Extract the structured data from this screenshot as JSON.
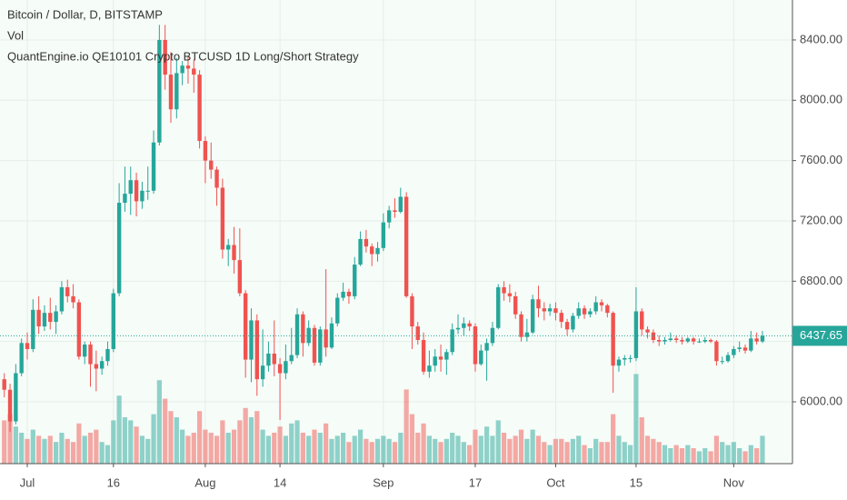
{
  "chart_data": {
    "type": "candlestick",
    "title": "Bitcoin / Dollar, D, BITSTAMP",
    "indicators": [
      "Vol",
      "QuantEngine.io QE10101 Crypto BTCUSD 1D Long/Short Strategy"
    ],
    "up_color": "#26a69a",
    "down_color": "#ef5350",
    "grid": true,
    "last_price": 6437.65,
    "ylim": [
      5590,
      8665
    ],
    "yticks": [
      {
        "value": 6000,
        "label": "6000.00"
      },
      {
        "value": 6400,
        "label": "6400.00"
      },
      {
        "value": 6800,
        "label": "6800.00"
      },
      {
        "value": 7200,
        "label": "7200.00"
      },
      {
        "value": 7600,
        "label": "7600.00"
      },
      {
        "value": 8000,
        "label": "8000.00"
      },
      {
        "value": 8400,
        "label": "8400.00"
      }
    ],
    "vlim": [
      0,
      150000
    ],
    "categories": [
      null,
      null,
      null,
      null,
      "Jul",
      null,
      null,
      null,
      null,
      null,
      null,
      null,
      null,
      null,
      null,
      null,
      null,
      null,
      null,
      "16",
      null,
      null,
      null,
      null,
      null,
      null,
      null,
      null,
      null,
      null,
      null,
      null,
      null,
      null,
      null,
      "Aug",
      null,
      null,
      null,
      null,
      null,
      null,
      null,
      null,
      null,
      null,
      null,
      null,
      "14",
      null,
      null,
      null,
      null,
      null,
      null,
      null,
      null,
      null,
      null,
      null,
      null,
      null,
      null,
      null,
      null,
      null,
      "Sep",
      null,
      null,
      null,
      null,
      null,
      null,
      null,
      null,
      null,
      null,
      null,
      null,
      null,
      null,
      null,
      "17",
      null,
      null,
      null,
      null,
      null,
      null,
      null,
      null,
      null,
      null,
      null,
      null,
      null,
      "Oct",
      null,
      null,
      null,
      null,
      null,
      null,
      null,
      null,
      null,
      null,
      null,
      null,
      null,
      "15",
      null,
      null,
      null,
      null,
      null,
      null,
      null,
      null,
      null,
      null,
      null,
      null,
      null,
      null,
      null,
      null,
      "Nov",
      null,
      null,
      null,
      null,
      null
    ],
    "ohlc": [
      [
        6150,
        6190,
        6030,
        6080
      ],
      [
        6080,
        6120,
        5800,
        5870
      ],
      [
        5870,
        6250,
        5850,
        6190
      ],
      [
        6190,
        6420,
        6170,
        6390
      ],
      [
        6390,
        6460,
        6280,
        6350
      ],
      [
        6350,
        6680,
        6330,
        6610
      ],
      [
        6610,
        6700,
        6450,
        6500
      ],
      [
        6500,
        6640,
        6470,
        6590
      ],
      [
        6590,
        6690,
        6480,
        6530
      ],
      [
        6530,
        6640,
        6450,
        6600
      ],
      [
        6600,
        6800,
        6580,
        6760
      ],
      [
        6760,
        6810,
        6660,
        6700
      ],
      [
        6700,
        6780,
        6620,
        6660
      ],
      [
        6660,
        6680,
        6280,
        6300
      ],
      [
        6300,
        6400,
        6250,
        6380
      ],
      [
        6380,
        6400,
        6100,
        6250
      ],
      [
        6250,
        6340,
        6070,
        6220
      ],
      [
        6220,
        6300,
        6180,
        6270
      ],
      [
        6270,
        6400,
        6240,
        6350
      ],
      [
        6350,
        6750,
        6330,
        6720
      ],
      [
        6720,
        7450,
        6700,
        7320
      ],
      [
        7320,
        7560,
        7260,
        7380
      ],
      [
        7380,
        7560,
        7240,
        7470
      ],
      [
        7470,
        7520,
        7230,
        7330
      ],
      [
        7330,
        7460,
        7280,
        7400
      ],
      [
        7400,
        7560,
        7340,
        7400
      ],
      [
        7400,
        7800,
        7380,
        7720
      ],
      [
        7720,
        8500,
        7700,
        8400
      ],
      [
        8400,
        8500,
        8070,
        8170
      ],
      [
        8170,
        8320,
        7850,
        7940
      ],
      [
        7940,
        8280,
        7880,
        8180
      ],
      [
        8180,
        8260,
        8100,
        8230
      ],
      [
        8230,
        8290,
        8110,
        8210
      ],
      [
        8210,
        8270,
        8050,
        8170
      ],
      [
        8170,
        8200,
        7680,
        7730
      ],
      [
        7730,
        7760,
        7450,
        7600
      ],
      [
        7600,
        7720,
        7480,
        7540
      ],
      [
        7540,
        7560,
        7300,
        7420
      ],
      [
        7420,
        7480,
        6950,
        7010
      ],
      [
        7010,
        7080,
        6900,
        7040
      ],
      [
        7040,
        7160,
        6850,
        6940
      ],
      [
        6940,
        7150,
        6700,
        6720
      ],
      [
        6720,
        6740,
        6160,
        6280
      ],
      [
        6280,
        6620,
        6130,
        6540
      ],
      [
        6540,
        6580,
        6040,
        6150
      ],
      [
        6150,
        6480,
        6100,
        6240
      ],
      [
        6240,
        6400,
        6200,
        6320
      ],
      [
        6320,
        6540,
        6170,
        6250
      ],
      [
        6250,
        6290,
        5880,
        6190
      ],
      [
        6190,
        6380,
        6150,
        6270
      ],
      [
        6270,
        6490,
        6250,
        6310
      ],
      [
        6310,
        6620,
        6290,
        6580
      ],
      [
        6580,
        6600,
        6300,
        6390
      ],
      [
        6390,
        6540,
        6370,
        6490
      ],
      [
        6490,
        6510,
        6240,
        6260
      ],
      [
        6260,
        6500,
        6240,
        6480
      ],
      [
        6480,
        6880,
        6300,
        6360
      ],
      [
        6360,
        6560,
        6350,
        6520
      ],
      [
        6520,
        6720,
        6500,
        6690
      ],
      [
        6690,
        6790,
        6670,
        6730
      ],
      [
        6730,
        6750,
        6650,
        6700
      ],
      [
        6700,
        6960,
        6680,
        6910
      ],
      [
        6910,
        7130,
        6900,
        7080
      ],
      [
        7080,
        7140,
        6990,
        7030
      ],
      [
        7030,
        7050,
        6900,
        6980
      ],
      [
        6980,
        7060,
        6930,
        7020
      ],
      [
        7020,
        7250,
        7000,
        7190
      ],
      [
        7190,
        7300,
        7150,
        7270
      ],
      [
        7270,
        7350,
        7220,
        7260
      ],
      [
        7260,
        7420,
        7250,
        7360
      ],
      [
        7360,
        7390,
        6690,
        6700
      ],
      [
        6700,
        6720,
        6350,
        6500
      ],
      [
        6500,
        6530,
        6380,
        6410
      ],
      [
        6410,
        6460,
        6180,
        6200
      ],
      [
        6200,
        6340,
        6160,
        6240
      ],
      [
        6240,
        6350,
        6200,
        6300
      ],
      [
        6300,
        6380,
        6200,
        6280
      ],
      [
        6280,
        6350,
        6180,
        6330
      ],
      [
        6330,
        6520,
        6310,
        6480
      ],
      [
        6480,
        6580,
        6450,
        6490
      ],
      [
        6490,
        6560,
        6440,
        6520
      ],
      [
        6520,
        6540,
        6470,
        6500
      ],
      [
        6500,
        6520,
        6200,
        6250
      ],
      [
        6250,
        6380,
        6240,
        6340
      ],
      [
        6340,
        6420,
        6140,
        6390
      ],
      [
        6390,
        6530,
        6370,
        6490
      ],
      [
        6490,
        6780,
        6480,
        6760
      ],
      [
        6760,
        6800,
        6670,
        6720
      ],
      [
        6720,
        6780,
        6660,
        6700
      ],
      [
        6700,
        6730,
        6550,
        6580
      ],
      [
        6580,
        6600,
        6400,
        6430
      ],
      [
        6430,
        6550,
        6400,
        6460
      ],
      [
        6460,
        6710,
        6450,
        6680
      ],
      [
        6680,
        6770,
        6560,
        6620
      ],
      [
        6620,
        6660,
        6540,
        6600
      ],
      [
        6600,
        6650,
        6570,
        6620
      ],
      [
        6620,
        6660,
        6540,
        6590
      ],
      [
        6590,
        6610,
        6490,
        6530
      ],
      [
        6530,
        6550,
        6440,
        6480
      ],
      [
        6480,
        6590,
        6460,
        6570
      ],
      [
        6570,
        6660,
        6550,
        6620
      ],
      [
        6620,
        6640,
        6550,
        6580
      ],
      [
        6580,
        6620,
        6560,
        6600
      ],
      [
        6600,
        6700,
        6580,
        6660
      ],
      [
        6660,
        6680,
        6600,
        6640
      ],
      [
        6640,
        6650,
        6560,
        6590
      ],
      [
        6590,
        6600,
        6060,
        6240
      ],
      [
        6240,
        6300,
        6200,
        6280
      ],
      [
        6280,
        6310,
        6240,
        6290
      ],
      [
        6290,
        6310,
        6260,
        6290
      ],
      [
        6290,
        6760,
        6270,
        6600
      ],
      [
        6600,
        6620,
        6440,
        6480
      ],
      [
        6480,
        6500,
        6420,
        6460
      ],
      [
        6460,
        6480,
        6390,
        6410
      ],
      [
        6410,
        6440,
        6370,
        6400
      ],
      [
        6400,
        6430,
        6380,
        6410
      ],
      [
        6410,
        6460,
        6400,
        6420
      ],
      [
        6420,
        6440,
        6390,
        6410
      ],
      [
        6410,
        6430,
        6380,
        6400
      ],
      [
        6400,
        6430,
        6390,
        6420
      ],
      [
        6420,
        6430,
        6380,
        6400
      ],
      [
        6400,
        6420,
        6390,
        6400
      ],
      [
        6400,
        6430,
        6390,
        6410
      ],
      [
        6410,
        6420,
        6390,
        6400
      ],
      [
        6400,
        6410,
        6240,
        6270
      ],
      [
        6270,
        6300,
        6250,
        6270
      ],
      [
        6270,
        6330,
        6260,
        6310
      ],
      [
        6310,
        6370,
        6290,
        6350
      ],
      [
        6350,
        6400,
        6330,
        6360
      ],
      [
        6360,
        6380,
        6320,
        6340
      ],
      [
        6340,
        6470,
        6330,
        6420
      ],
      [
        6420,
        6460,
        6380,
        6400
      ],
      [
        6400,
        6470,
        6390,
        6437.65
      ]
    ],
    "volume": [
      14000,
      16000,
      12000,
      10000,
      8000,
      11000,
      9000,
      8000,
      9000,
      7000,
      10000,
      8000,
      7000,
      13000,
      9000,
      10000,
      11000,
      7000,
      6000,
      14000,
      22000,
      15000,
      14000,
      12000,
      9000,
      8000,
      16000,
      27000,
      21000,
      17000,
      15000,
      11000,
      9000,
      10000,
      17000,
      11000,
      10000,
      9000,
      14000,
      10000,
      11000,
      14000,
      18000,
      15000,
      17000,
      11000,
      9000,
      10000,
      12000,
      9000,
      13000,
      14000,
      10000,
      9000,
      11000,
      10000,
      13000,
      8000,
      9000,
      10000,
      7000,
      9000,
      11000,
      8000,
      7000,
      8000,
      9000,
      8000,
      7000,
      10000,
      24000,
      16000,
      10000,
      13000,
      9000,
      8000,
      7000,
      8000,
      10000,
      9000,
      7000,
      6000,
      11000,
      9000,
      12000,
      9000,
      14000,
      10000,
      8000,
      9000,
      11000,
      8000,
      11000,
      9000,
      7000,
      6000,
      8000,
      8000,
      7000,
      8000,
      9000,
      6000,
      5000,
      8000,
      7000,
      7000,
      16000,
      9000,
      7000,
      6000,
      29000,
      15000,
      9000,
      8000,
      7000,
      6000,
      5000,
      6000,
      5000,
      6000,
      5000,
      4000,
      5000,
      4000,
      9000,
      7000,
      6000,
      7000,
      5000,
      4000,
      6000,
      5000,
      9000
    ]
  }
}
